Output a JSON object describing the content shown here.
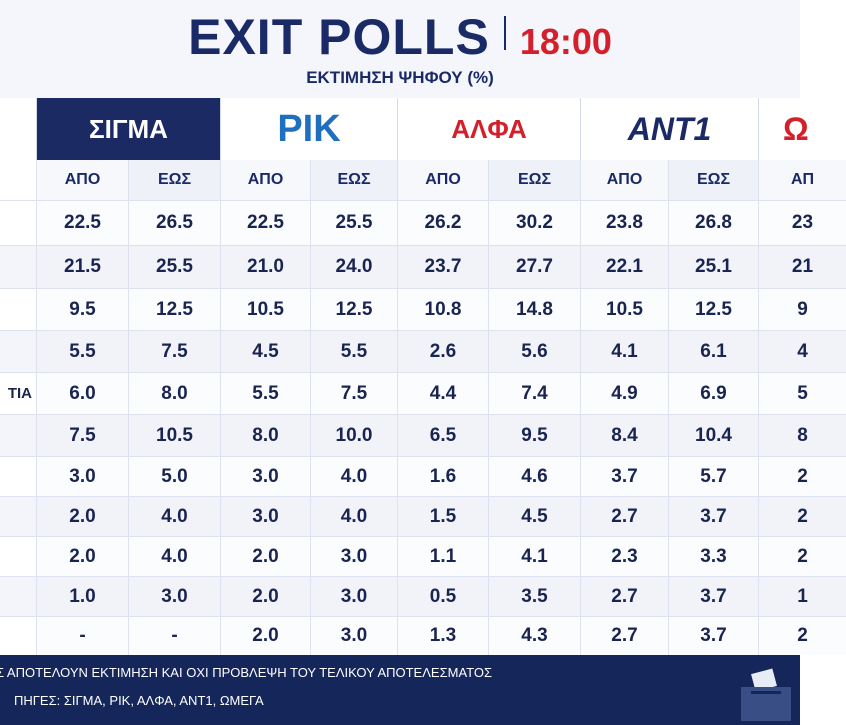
{
  "header": {
    "title": "EXIT POLLS",
    "time": "18:00",
    "subtitle": "ΕΚΤΙΜΗΣΗ ΨΗΦΟΥ (%)"
  },
  "sources": [
    "ΣΙΓΜΑ",
    "ΡΙΚ",
    "ΑΛΦΑ",
    "ANT1",
    "Ω"
  ],
  "subheaders": [
    "ΑΠΟ",
    "ΕΩΣ",
    "ΑΠΟ",
    "ΕΩΣ",
    "ΑΠΟ",
    "ΕΩΣ",
    "ΑΠΟ",
    "ΕΩΣ",
    "ΑΠ"
  ],
  "table": {
    "rows": [
      {
        "cells": [
          "22.5",
          "26.5",
          "22.5",
          "25.5",
          "26.2",
          "30.2",
          "23.8",
          "26.8",
          "23"
        ]
      },
      {
        "cells": [
          "21.5",
          "25.5",
          "21.0",
          "24.0",
          "23.7",
          "27.7",
          "22.1",
          "25.1",
          "21"
        ]
      },
      {
        "cells": [
          "9.5",
          "12.5",
          "10.5",
          "12.5",
          "10.8",
          "14.8",
          "10.5",
          "12.5",
          "9"
        ]
      },
      {
        "cells": [
          "5.5",
          "7.5",
          "4.5",
          "5.5",
          "2.6",
          "5.6",
          "4.1",
          "6.1",
          "4"
        ]
      },
      {
        "label": "ΤΙΑ",
        "cells": [
          "6.0",
          "8.0",
          "5.5",
          "7.5",
          "4.4",
          "7.4",
          "4.9",
          "6.9",
          "5"
        ]
      },
      {
        "cells": [
          "7.5",
          "10.5",
          "8.0",
          "10.0",
          "6.5",
          "9.5",
          "8.4",
          "10.4",
          "8"
        ]
      },
      {
        "cells": [
          "3.0",
          "5.0",
          "3.0",
          "4.0",
          "1.6",
          "4.6",
          "3.7",
          "5.7",
          "2"
        ]
      },
      {
        "cells": [
          "2.0",
          "4.0",
          "3.0",
          "4.0",
          "1.5",
          "4.5",
          "2.7",
          "3.7",
          "2"
        ]
      },
      {
        "cells": [
          "2.0",
          "4.0",
          "2.0",
          "3.0",
          "1.1",
          "4.1",
          "2.3",
          "3.3",
          "2"
        ]
      },
      {
        "cells": [
          "1.0",
          "3.0",
          "2.0",
          "3.0",
          "0.5",
          "3.5",
          "2.7",
          "3.7",
          "1"
        ]
      },
      {
        "cells": [
          "-",
          "-",
          "2.0",
          "3.0",
          "1.3",
          "4.3",
          "2.7",
          "3.7",
          "2"
        ]
      }
    ]
  },
  "footer": {
    "note": "Σ ΑΠΟΤΕΛΟΥΝ ΕΚΤΙΜΗΣΗ ΚΑΙ ΟΧΙ ΠΡΟΒΛΕΨΗ ΤΟΥ ΤΕΛΙΚΟΥ ΑΠΟΤΕΛΕΣΜΑΤΟΣ",
    "sources": "ΠΗΓΕΣ: ΣΙΓΜΑ, ΡΙΚ, ΑΛΦΑ, ΑΝΤ1, ΩΜΕΓΑ"
  }
}
